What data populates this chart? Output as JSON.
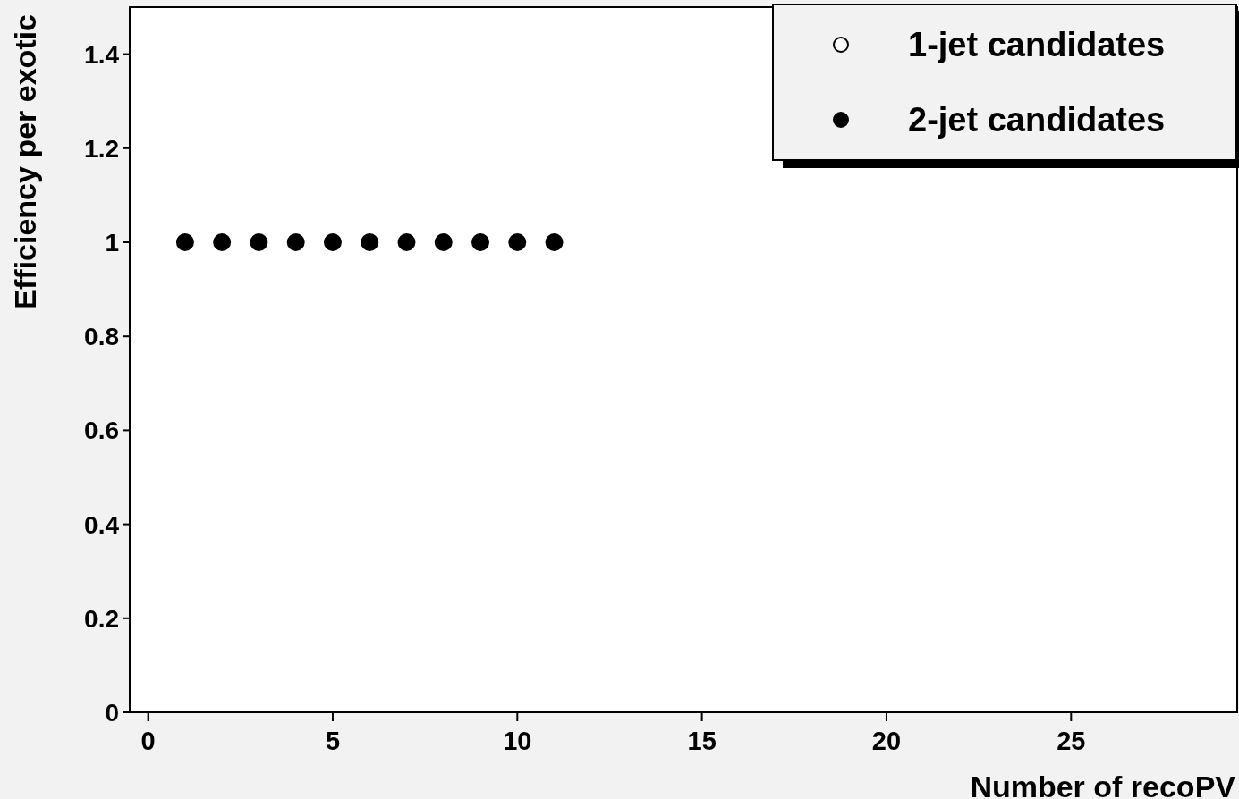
{
  "chart_data": {
    "type": "scatter",
    "xlabel": "Number of recoPV",
    "ylabel": "Efficiency per exotic",
    "x": [
      1,
      2,
      3,
      4,
      5,
      6,
      7,
      8,
      9,
      10,
      11
    ],
    "series": [
      {
        "name": "1-jet candidates",
        "color": "#000000",
        "values": [
          null,
          null,
          null,
          null,
          null,
          null,
          null,
          null,
          null,
          null,
          null
        ]
      },
      {
        "name": "2-jet candidates",
        "color": "#000000",
        "values": [
          1,
          1,
          1,
          1,
          1,
          1,
          1,
          1,
          1,
          1,
          1
        ]
      }
    ],
    "xlim": [
      -0.5,
      29.5
    ],
    "xticks": [
      0,
      5,
      10,
      15,
      20,
      25
    ],
    "ylim": [
      0,
      1.5
    ],
    "yticks": [
      0,
      0.2,
      0.4,
      0.6,
      0.8,
      1,
      1.2,
      1.4
    ],
    "grid": false,
    "legend": "top right",
    "marker": "circle"
  }
}
